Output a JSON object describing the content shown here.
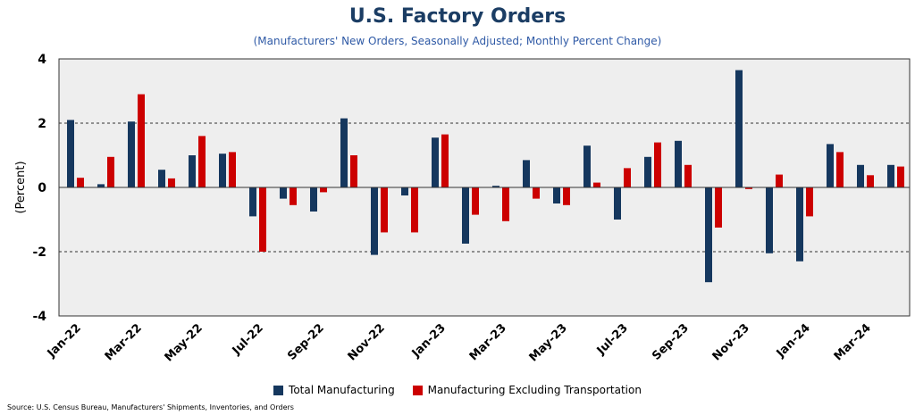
{
  "title": "U.S. Factory Orders",
  "subtitle": "(Manufacturers' New Orders, Seasonally Adjusted; Monthly Percent Change)",
  "source": "Source: U.S. Census Bureau, Manufacturers' Shipments, Inventories, and Orders",
  "colors": {
    "plot_background": "#eeeeee",
    "grid": "#333333",
    "series_total": "#15375e",
    "series_ex_transport": "#cc0000"
  },
  "chart_data": {
    "type": "bar",
    "ylabel": "(Percent)",
    "ylim": [
      -4,
      4
    ],
    "yticks": [
      "4",
      "2",
      "0",
      "-2",
      "-4"
    ],
    "ytick_values": [
      4,
      2,
      0,
      -2,
      -4
    ],
    "gridlines_at": [
      2,
      -2
    ],
    "gridline_style": "dashed",
    "legend_position": "bottom",
    "categories": [
      "Jan-22",
      "Feb-22",
      "Mar-22",
      "Apr-22",
      "May-22",
      "Jun-22",
      "Jul-22",
      "Aug-22",
      "Sep-22",
      "Oct-22",
      "Nov-22",
      "Dec-22",
      "Jan-23",
      "Feb-23",
      "Mar-23",
      "Apr-23",
      "May-23",
      "Jun-23",
      "Jul-23",
      "Aug-23",
      "Sep-23",
      "Oct-23",
      "Nov-23",
      "Dec-23",
      "Jan-24",
      "Feb-24",
      "Mar-24",
      "Apr-24"
    ],
    "x_tick_labels": [
      "Jan-22",
      "Mar-22",
      "May-22",
      "Jul-22",
      "Sep-22",
      "Nov-22",
      "Jan-23",
      "Mar-23",
      "May-23",
      "Jul-23",
      "Sep-23",
      "Nov-23",
      "Jan-24",
      "Mar-24"
    ],
    "series": [
      {
        "name": "Total Manufacturing",
        "values": [
          2.1,
          0.1,
          2.05,
          0.55,
          1.0,
          1.05,
          -0.9,
          -0.35,
          -0.75,
          2.15,
          -2.1,
          -0.25,
          1.55,
          -1.75,
          0.05,
          0.85,
          -0.5,
          1.3,
          -1.0,
          0.95,
          1.45,
          -2.95,
          3.65,
          -2.05,
          -2.3,
          1.35,
          0.7,
          0.7
        ]
      },
      {
        "name": "Manufacturing Excluding Transportation",
        "values": [
          0.3,
          0.95,
          2.9,
          0.28,
          1.6,
          1.1,
          -2.0,
          -0.55,
          -0.15,
          1.0,
          -1.4,
          -1.4,
          1.65,
          -0.85,
          -1.05,
          -0.35,
          -0.55,
          0.15,
          0.6,
          1.4,
          0.7,
          -1.25,
          -0.05,
          0.4,
          -0.9,
          1.1,
          0.38,
          0.65
        ]
      }
    ]
  }
}
